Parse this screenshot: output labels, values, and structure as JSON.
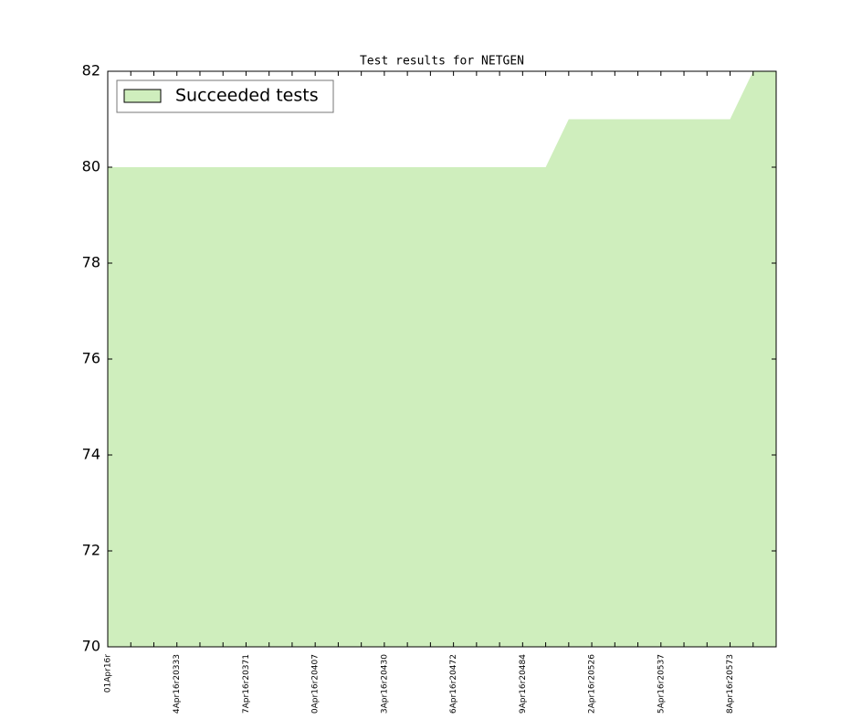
{
  "chart_data": {
    "type": "area",
    "title": "Test results for NETGEN",
    "categories": [
      "01Apr16r",
      null,
      null,
      "4Apr16r20333",
      null,
      null,
      "7Apr16r20371",
      null,
      null,
      "0Apr16r20407",
      null,
      null,
      "3Apr16r20430",
      null,
      null,
      "6Apr16r20472",
      null,
      null,
      "9Apr16r20484",
      null,
      null,
      "2Apr16r20526",
      null,
      null,
      "5Apr16r20537",
      null,
      null,
      "8Apr16r20573",
      null,
      null
    ],
    "series": [
      {
        "name": "Succeeded tests",
        "color": "#cfeebd",
        "values": [
          80,
          80,
          80,
          80,
          80,
          80,
          80,
          80,
          80,
          80,
          80,
          80,
          80,
          80,
          80,
          80,
          80,
          80,
          80,
          80,
          81,
          81,
          81,
          81,
          81,
          81,
          81,
          81,
          82,
          82
        ]
      }
    ],
    "ylim": [
      70,
      82
    ],
    "yticks": [
      70,
      72,
      74,
      76,
      78,
      80,
      82
    ],
    "legend": "upper left"
  }
}
